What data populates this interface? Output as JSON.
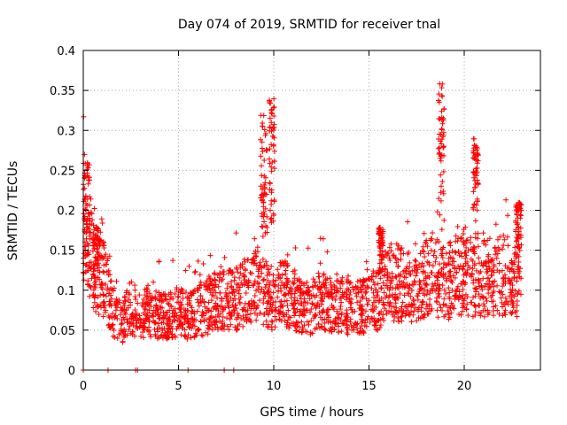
{
  "chart_data": {
    "type": "scatter",
    "title": "Day 074 of 2019, SRMTID for receiver tnal",
    "xlabel": "GPS time / hours",
    "ylabel": "SRMTID / TECUs",
    "xlim": [
      0,
      24
    ],
    "ylim": [
      0,
      0.4
    ],
    "xticks": [
      0,
      5,
      10,
      15,
      20
    ],
    "xtick_labels": [
      "0",
      "5",
      "10",
      "15",
      "20"
    ],
    "yticks": [
      0,
      0.05,
      0.1,
      0.15,
      0.2,
      0.25,
      0.3,
      0.35,
      0.4
    ],
    "ytick_labels": [
      "0",
      "0.05",
      "0.1",
      "0.15",
      "0.2",
      "0.25",
      "0.3",
      "0.35",
      "0.4"
    ],
    "grid": true,
    "marker": "+",
    "color": "#ff0000",
    "series": [
      {
        "name": "SRMTID",
        "trend": [
          [
            0.0,
            0.2
          ],
          [
            0.3,
            0.17
          ],
          [
            0.6,
            0.12
          ],
          [
            1.0,
            0.12
          ],
          [
            1.5,
            0.08
          ],
          [
            2.0,
            0.06
          ],
          [
            2.5,
            0.08
          ],
          [
            3.0,
            0.07
          ],
          [
            3.5,
            0.075
          ],
          [
            4.0,
            0.07
          ],
          [
            4.5,
            0.07
          ],
          [
            5.0,
            0.075
          ],
          [
            5.5,
            0.07
          ],
          [
            6.0,
            0.075
          ],
          [
            6.5,
            0.08
          ],
          [
            7.0,
            0.09
          ],
          [
            7.5,
            0.09
          ],
          [
            8.0,
            0.09
          ],
          [
            8.5,
            0.1
          ],
          [
            9.0,
            0.11
          ],
          [
            9.5,
            0.1
          ],
          [
            10.0,
            0.09
          ],
          [
            10.5,
            0.1
          ],
          [
            11.0,
            0.09
          ],
          [
            11.5,
            0.08
          ],
          [
            12.0,
            0.08
          ],
          [
            12.5,
            0.09
          ],
          [
            13.0,
            0.08
          ],
          [
            13.5,
            0.085
          ],
          [
            14.0,
            0.08
          ],
          [
            14.5,
            0.08
          ],
          [
            15.0,
            0.085
          ],
          [
            15.5,
            0.09
          ],
          [
            16.0,
            0.11
          ],
          [
            16.5,
            0.11
          ],
          [
            17.0,
            0.11
          ],
          [
            17.5,
            0.1
          ],
          [
            18.0,
            0.12
          ],
          [
            18.5,
            0.12
          ],
          [
            19.0,
            0.11
          ],
          [
            19.5,
            0.12
          ],
          [
            20.0,
            0.12
          ],
          [
            20.5,
            0.12
          ],
          [
            21.0,
            0.12
          ],
          [
            21.5,
            0.12
          ],
          [
            22.0,
            0.12
          ],
          [
            22.5,
            0.12
          ],
          [
            23.0,
            0.12
          ]
        ],
        "spikes": [
          {
            "x0": 0.0,
            "x1": 0.35,
            "ymin": 0.13,
            "ymax": 0.26
          },
          {
            "x0": 0.55,
            "x1": 0.9,
            "ymin": 0.09,
            "ymax": 0.18
          },
          {
            "x0": 9.3,
            "x1": 9.65,
            "ymin": 0.15,
            "ymax": 0.32
          },
          {
            "x0": 9.75,
            "x1": 10.05,
            "ymin": 0.18,
            "ymax": 0.34
          },
          {
            "x0": 15.5,
            "x1": 15.75,
            "ymin": 0.12,
            "ymax": 0.18
          },
          {
            "x0": 18.65,
            "x1": 18.95,
            "ymin": 0.17,
            "ymax": 0.36
          },
          {
            "x0": 20.45,
            "x1": 20.75,
            "ymin": 0.2,
            "ymax": 0.29
          },
          {
            "x0": 22.7,
            "x1": 23.0,
            "ymin": 0.14,
            "ymax": 0.21
          }
        ],
        "zero_points": [
          0.0,
          1.3,
          2.75,
          2.85,
          5.5,
          7.4,
          7.9
        ]
      }
    ]
  }
}
